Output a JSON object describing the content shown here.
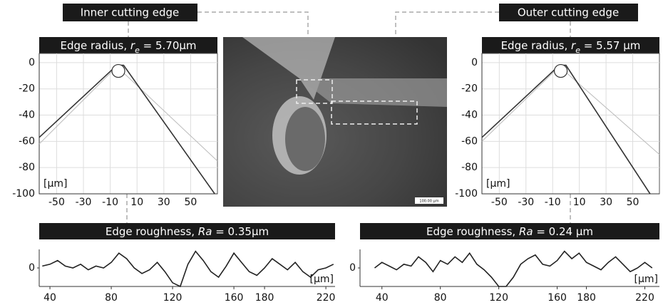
{
  "labels": {
    "inner": "Inner cutting edge",
    "outer": "Outer cutting edge",
    "scale_bar": "100.00 µm"
  },
  "chart_data": [
    {
      "type": "line",
      "title": [
        "Edge radius, ",
        "r",
        "e",
        " = 5.70µm"
      ],
      "unit_label": "[µm]",
      "xlim": [
        -63,
        70
      ],
      "ylim": [
        -100,
        7
      ],
      "xticks": [
        -50,
        -30,
        -10,
        10,
        30,
        50
      ],
      "yticks": [
        0,
        -20,
        -40,
        -60,
        -80,
        -100
      ],
      "grid": true,
      "series": [
        {
          "color": "#bbbbbb",
          "x": [
            -63,
            -5,
            70
          ],
          "values": [
            -62,
            -3,
            -75
          ]
        },
        {
          "color": "#333333",
          "x": [
            -63,
            -5,
            0,
            68
          ],
          "values": [
            -57,
            -2,
            -2,
            -100
          ]
        }
      ]
    },
    {
      "type": "line",
      "title": [
        "Edge radius, ",
        "r",
        "e",
        " = 5.57 µm"
      ],
      "unit_label": "[µm]",
      "xlim": [
        -63,
        70
      ],
      "ylim": [
        -100,
        7
      ],
      "xticks": [
        -50,
        -30,
        -10,
        10,
        30,
        50
      ],
      "yticks": [
        0,
        -20,
        -40,
        -60,
        -80,
        -100
      ],
      "grid": true,
      "series": [
        {
          "color": "#bbbbbb",
          "x": [
            -63,
            -5,
            70
          ],
          "values": [
            -60,
            -3,
            -70
          ]
        },
        {
          "color": "#333333",
          "x": [
            -63,
            -5,
            0,
            63
          ],
          "values": [
            -57,
            -2,
            -2,
            -100
          ]
        }
      ]
    },
    {
      "type": "line",
      "title": [
        "Edge roughness, ",
        "Ra",
        " = 0.35µm"
      ],
      "unit_label": "[µm]",
      "xlim": [
        33,
        226
      ],
      "ylim": [
        -1,
        1
      ],
      "xticks": [
        40,
        80,
        120,
        160,
        180,
        220
      ],
      "yticks": [
        0
      ],
      "grid": false,
      "series": [
        {
          "color": "#222222",
          "x": [
            35,
            40,
            45,
            50,
            55,
            60,
            65,
            70,
            75,
            80,
            85,
            90,
            95,
            100,
            105,
            110,
            115,
            120,
            125,
            130,
            135,
            140,
            145,
            150,
            155,
            160,
            165,
            170,
            175,
            180,
            185,
            190,
            195,
            200,
            205,
            210,
            215,
            220,
            225
          ],
          "values": [
            0.1,
            0.2,
            0.4,
            0.1,
            0,
            0.2,
            -0.1,
            0.1,
            0,
            0.3,
            0.8,
            0.5,
            0,
            -0.3,
            -0.1,
            0.3,
            -0.2,
            -0.8,
            -1,
            0.2,
            0.9,
            0.4,
            -0.2,
            -0.5,
            0.1,
            0.8,
            0.3,
            -0.2,
            -0.4,
            0,
            0.5,
            0.2,
            -0.1,
            0.3,
            -0.2,
            -0.5,
            -0.1,
            0,
            0.2
          ]
        }
      ]
    },
    {
      "type": "line",
      "title": [
        "Edge roughness, ",
        "Ra",
        " = 0.24 µm"
      ],
      "unit_label": "[µm]",
      "xlim": [
        25,
        230
      ],
      "ylim": [
        -1,
        1
      ],
      "xticks": [
        40,
        80,
        120,
        160,
        180,
        220
      ],
      "yticks": [
        0
      ],
      "grid": false,
      "series": [
        {
          "color": "#222222",
          "x": [
            35,
            40,
            45,
            50,
            55,
            60,
            65,
            70,
            75,
            80,
            85,
            90,
            95,
            100,
            105,
            110,
            115,
            120,
            125,
            130,
            135,
            140,
            145,
            150,
            155,
            160,
            165,
            170,
            175,
            180,
            185,
            190,
            195,
            200,
            205,
            210,
            215,
            220,
            225
          ],
          "values": [
            0,
            0.3,
            0.1,
            -0.1,
            0.2,
            0.1,
            0.6,
            0.3,
            -0.2,
            0.4,
            0.2,
            0.6,
            0.3,
            0.8,
            0.2,
            -0.1,
            -0.5,
            -1,
            -1,
            -0.5,
            0.2,
            0.5,
            0.7,
            0.2,
            0.1,
            0.4,
            0.9,
            0.5,
            0.8,
            0.3,
            0.1,
            -0.1,
            0.3,
            0.6,
            0.2,
            -0.2,
            0,
            0.3,
            0
          ]
        }
      ]
    }
  ]
}
